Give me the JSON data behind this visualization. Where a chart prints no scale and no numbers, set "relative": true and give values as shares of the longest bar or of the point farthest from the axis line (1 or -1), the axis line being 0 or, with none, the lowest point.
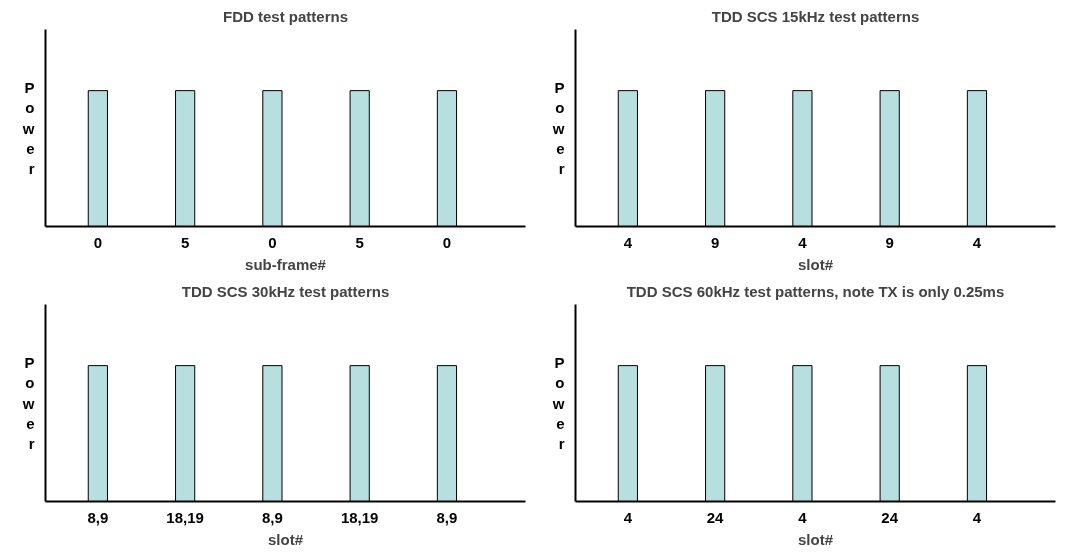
{
  "chart_data": [
    {
      "type": "bar",
      "title": "FDD test patterns",
      "xlabel": "sub-frame#",
      "ylabel": "Power",
      "relative": true,
      "categories": [
        "0",
        "5",
        "0",
        "5",
        "0"
      ],
      "series": [
        {
          "color": "#b7dfe0",
          "values": [
            1,
            1,
            1,
            1,
            1
          ]
        }
      ],
      "grid": false
    },
    {
      "type": "bar",
      "title": "TDD SCS 15kHz test patterns",
      "xlabel": "slot#",
      "ylabel": "Power",
      "relative": true,
      "categories": [
        "4",
        "9",
        "4",
        "9",
        "4"
      ],
      "series": [
        {
          "color": "#b7dfe0",
          "values": [
            1,
            1,
            1,
            1,
            1
          ]
        }
      ],
      "grid": false
    },
    {
      "type": "bar",
      "title": "TDD SCS 30kHz test patterns",
      "xlabel": "slot#",
      "ylabel": "Power",
      "relative": true,
      "categories": [
        "8,9",
        "18,19",
        "8,9",
        "18,19",
        "8,9"
      ],
      "series": [
        {
          "color": "#b7dfe0",
          "values": [
            1,
            1,
            1,
            1,
            1
          ]
        }
      ],
      "grid": false
    },
    {
      "type": "bar",
      "title": "TDD SCS 60kHz test patterns, note TX is only 0.25ms",
      "xlabel": "slot#",
      "ylabel": "Power",
      "relative": true,
      "categories": [
        "4",
        "24",
        "4",
        "24",
        "4"
      ],
      "series": [
        {
          "color": "#b7dfe0",
          "values": [
            1,
            1,
            1,
            1,
            1
          ]
        }
      ],
      "grid": false
    }
  ]
}
